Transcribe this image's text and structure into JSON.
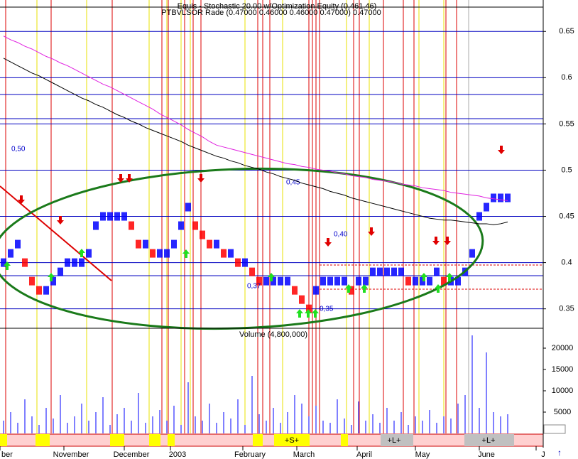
{
  "chart_data": {
    "type": "bar",
    "title": "Equis - Stochastic 20.00 w/Optimization Equity (0,461.46)",
    "subtitle": "PTBVLSOR Rade (0.47000 0.46000 0.46000 0.47000) 0.47000",
    "level_labels": [
      "0,50",
      "0,45",
      "0,40",
      "0,37",
      "0,35"
    ],
    "ylim": [
      0.329,
      0.684
    ],
    "yticks": [
      0.35,
      0.4,
      0.45,
      0.5,
      0.55,
      0.6,
      0.65
    ],
    "price": {
      "color_up": "#0000ff",
      "color_down": "#ff0000",
      "values": [
        0.4,
        0.41,
        0.42,
        0.4,
        0.38,
        0.37,
        0.37,
        0.38,
        0.39,
        0.4,
        0.4,
        0.4,
        0.41,
        0.44,
        0.45,
        0.45,
        0.45,
        0.45,
        0.44,
        0.42,
        0.42,
        0.41,
        0.41,
        0.41,
        0.42,
        0.44,
        0.46,
        0.44,
        0.43,
        0.42,
        0.42,
        0.41,
        0.41,
        0.4,
        0.4,
        0.39,
        0.38,
        0.38,
        0.38,
        0.38,
        0.38,
        0.37,
        0.36,
        0.35,
        0.37,
        0.38,
        0.38,
        0.38,
        0.38,
        0.37,
        0.38,
        0.38,
        0.39,
        0.39,
        0.39,
        0.39,
        0.39,
        0.38,
        0.38,
        0.38,
        0.38,
        0.39,
        0.38,
        0.38,
        0.38,
        0.39,
        0.41,
        0.45,
        0.46,
        0.47,
        0.47,
        0.47
      ]
    },
    "series": [
      {
        "name": null,
        "color": "#e020e0",
        "values": [
          0.645,
          0.641,
          0.638,
          0.634,
          0.631,
          0.627,
          0.623,
          0.62,
          0.616,
          0.613,
          0.609,
          0.605,
          0.601,
          0.597,
          0.593,
          0.59,
          0.586,
          0.582,
          0.578,
          0.574,
          0.57,
          0.566,
          0.561,
          0.557,
          0.553,
          0.549,
          0.544,
          0.54,
          0.536,
          0.531,
          0.527,
          0.525,
          0.523,
          0.521,
          0.519,
          0.517,
          0.515,
          0.513,
          0.511,
          0.509,
          0.507,
          0.506,
          0.504,
          0.503,
          0.501,
          0.5,
          0.499,
          0.497,
          0.496,
          0.494,
          0.493,
          0.492,
          0.49,
          0.489,
          0.488,
          0.487,
          0.485,
          0.484,
          0.483,
          0.481,
          0.48,
          0.479,
          0.478,
          0.476,
          0.475,
          0.474,
          0.473,
          0.472,
          0.47,
          0.469,
          0.468,
          0.467
        ]
      },
      {
        "name": null,
        "color": "#000000",
        "values": [
          0.621,
          0.617,
          0.613,
          0.609,
          0.605,
          0.602,
          0.598,
          0.594,
          0.59,
          0.586,
          0.582,
          0.578,
          0.575,
          0.571,
          0.568,
          0.564,
          0.56,
          0.557,
          0.553,
          0.55,
          0.546,
          0.543,
          0.54,
          0.537,
          0.534,
          0.531,
          0.527,
          0.524,
          0.521,
          0.518,
          0.515,
          0.513,
          0.51,
          0.508,
          0.505,
          0.503,
          0.501,
          0.498,
          0.496,
          0.493,
          0.491,
          0.489,
          0.486,
          0.484,
          0.482,
          0.48,
          0.477,
          0.475,
          0.473,
          0.47,
          0.468,
          0.466,
          0.464,
          0.462,
          0.46,
          0.458,
          0.456,
          0.454,
          0.452,
          0.45,
          0.448,
          0.447,
          0.446,
          0.446,
          0.445,
          0.444,
          0.443,
          0.442,
          0.442,
          0.441,
          0.442,
          0.444
        ]
      }
    ],
    "volume": {
      "title": "Volume (4,800,000)",
      "color": "#0000ff",
      "ylim": [
        0,
        24500
      ],
      "yticks": [
        5000,
        10000,
        15000,
        20000
      ],
      "values": [
        3000,
        5000,
        2500,
        8000,
        4000,
        2000,
        6000,
        3500,
        9000,
        2500,
        4000,
        7000,
        3000,
        5000,
        8500,
        2000,
        4500,
        6000,
        3000,
        9500,
        2500,
        4000,
        5500,
        3000,
        6500,
        2000,
        12000,
        4000,
        3000,
        7000,
        2500,
        5000,
        3500,
        8000,
        2000,
        13500,
        4500,
        3000,
        6000,
        2500,
        5000,
        9000,
        7000,
        4000,
        6500,
        3000,
        2500,
        8000,
        3500,
        2000,
        7500,
        3000,
        4500,
        2500,
        6000,
        3000,
        5000,
        2000,
        4000,
        3000,
        5500,
        2500,
        4000,
        3500,
        7000,
        9000,
        23000,
        6000,
        19000,
        5000,
        4000,
        4500
      ]
    },
    "strip_labels": [
      "+S+",
      "+L+",
      "+L+"
    ],
    "months": [
      "ber",
      "November",
      "December",
      "2003",
      "February",
      "March",
      "April",
      "May",
      "June",
      "J"
    ]
  }
}
